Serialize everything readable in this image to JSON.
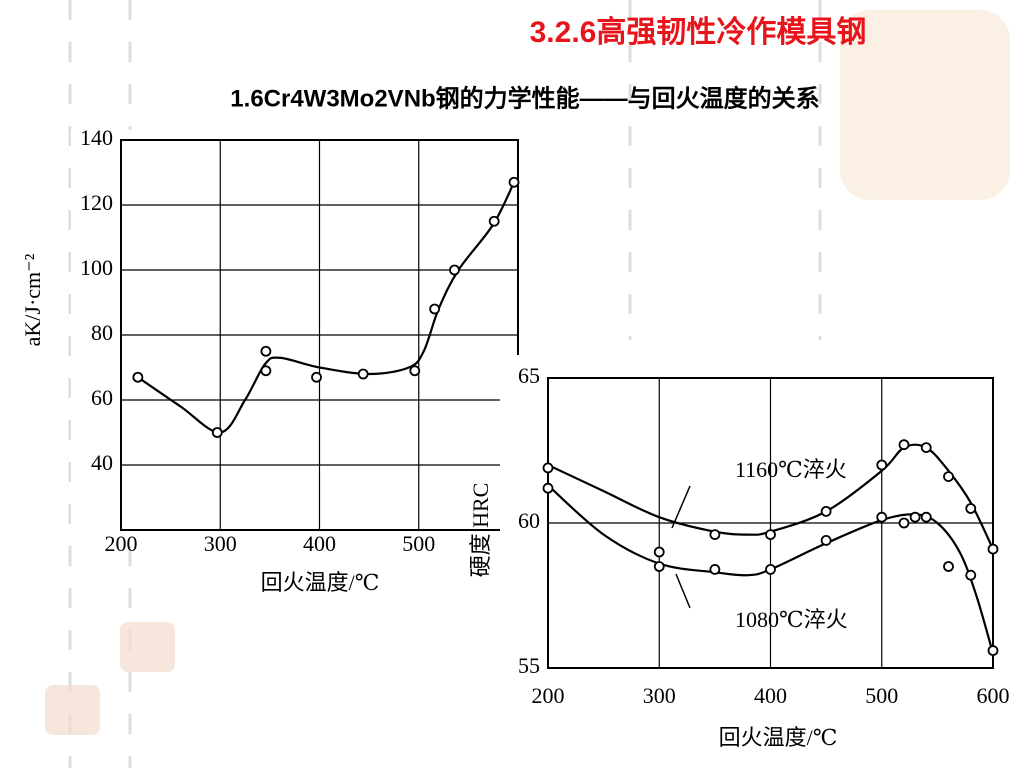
{
  "title": "3.2.6高强韧性冷作模具钢",
  "subtitle": "1.6Cr4W3Mo2VNb钢的力学性能——与回火温度的关系",
  "chart_data": [
    {
      "type": "scatter",
      "xlabel": "回火温度/℃",
      "ylabel": "aK/J·cm⁻²",
      "xlim": [
        200,
        600
      ],
      "xticks": [
        200,
        300,
        400,
        500
      ],
      "ylim": [
        20,
        140
      ],
      "yticks": [
        40,
        60,
        80,
        100,
        120,
        140
      ],
      "grid": true,
      "series": [
        {
          "color": "#000000",
          "x": [
            217,
            297,
            346,
            346,
            397,
            444,
            496,
            516,
            536,
            576,
            596
          ],
          "values": [
            67,
            50,
            75,
            69,
            67,
            68,
            69,
            88,
            100,
            115,
            127
          ],
          "curve_x": [
            217,
            260,
            300,
            325,
            345,
            360,
            400,
            450,
            490,
            505,
            520,
            540,
            575,
            596
          ],
          "curve_values": [
            67,
            58,
            50,
            60,
            71,
            73,
            70,
            68,
            70,
            75,
            88,
            100,
            114,
            127
          ]
        }
      ]
    },
    {
      "type": "scatter",
      "xlabel": "回火温度/℃",
      "ylabel": "硬度 HRC",
      "xlim": [
        200,
        600
      ],
      "xticks": [
        200,
        300,
        400,
        500,
        600
      ],
      "ylim": [
        55,
        65
      ],
      "yticks": [
        55,
        60,
        65
      ],
      "grid": true,
      "series": [
        {
          "name": "1160℃淬火",
          "color": "#000000",
          "x": [
            200,
            350,
            400,
            450,
            500,
            520,
            540,
            560,
            580,
            600
          ],
          "values": [
            61.9,
            59.6,
            59.6,
            60.4,
            62.0,
            62.7,
            62.6,
            61.6,
            60.5,
            59.1
          ],
          "curve_x": [
            200,
            250,
            300,
            350,
            380,
            400,
            450,
            500,
            520,
            540,
            560,
            580,
            600
          ],
          "curve_values": [
            62.0,
            61.1,
            60.2,
            59.7,
            59.6,
            59.7,
            60.4,
            61.8,
            62.6,
            62.6,
            61.8,
            60.7,
            59.1
          ]
        },
        {
          "name": "1080℃淬火",
          "color": "#000000",
          "x": [
            200,
            300,
            300,
            350,
            400,
            450,
            500,
            520,
            530,
            540,
            560,
            580,
            600
          ],
          "values": [
            61.2,
            59.0,
            58.5,
            58.4,
            58.4,
            59.4,
            60.2,
            60.0,
            60.2,
            60.2,
            58.5,
            58.2,
            55.6
          ],
          "curve_x": [
            200,
            250,
            300,
            350,
            380,
            400,
            450,
            500,
            530,
            550,
            570,
            585,
            600
          ],
          "curve_values": [
            61.3,
            59.6,
            58.6,
            58.3,
            58.2,
            58.4,
            59.3,
            60.1,
            60.3,
            60.0,
            59.0,
            57.5,
            55.5
          ]
        }
      ]
    }
  ]
}
